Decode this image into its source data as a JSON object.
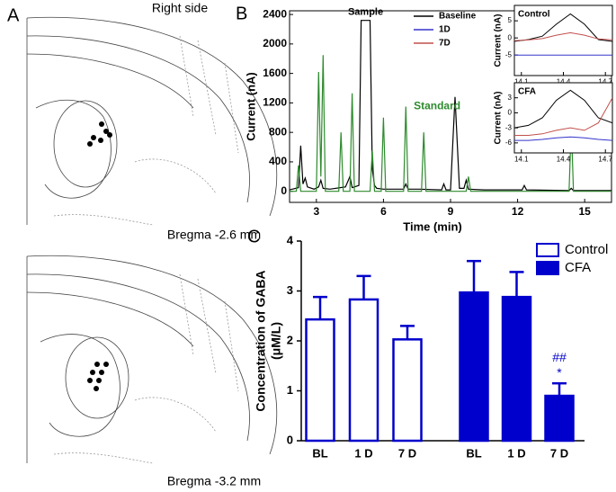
{
  "panel_a": {
    "letter": "A",
    "side_label": "Right side",
    "top_label": "Bregma -2.6 mm",
    "bottom_label": "Bregma -3.2 mm"
  },
  "chart_data": [
    {
      "type": "line",
      "panel": "B",
      "xlabel": "Time (min)",
      "ylabel": "Current (nA)",
      "xlim": [
        1.8,
        16.2
      ],
      "xticks": [
        3,
        6,
        9,
        12,
        15
      ],
      "ylim": [
        -150,
        2450
      ],
      "yticks": [
        0,
        400,
        800,
        1200,
        1600,
        2000,
        2400
      ],
      "series": [
        {
          "name": "Sample",
          "color": "#000000",
          "x": [
            1.8,
            2.2,
            2.3,
            2.4,
            2.5,
            2.6,
            2.9,
            3.1,
            3.2,
            3.3,
            3.6,
            4.3,
            4.5,
            4.6,
            4.9,
            5.0,
            5.4,
            5.5,
            5.6,
            5.7,
            6.0,
            6.9,
            7.0,
            7.1,
            7.6,
            8.6,
            8.7,
            8.8,
            9.0,
            9.2,
            9.4,
            9.6,
            9.7,
            9.8,
            10.5,
            12.2,
            12.3,
            12.4,
            14.3,
            14.4,
            14.5,
            16.2
          ],
          "values": [
            20,
            50,
            620,
            100,
            180,
            60,
            30,
            60,
            150,
            40,
            30,
            60,
            200,
            50,
            80,
            2320,
            2320,
            300,
            80,
            40,
            30,
            30,
            100,
            30,
            30,
            20,
            100,
            20,
            20,
            1280,
            40,
            40,
            150,
            30,
            20,
            20,
            80,
            20,
            10,
            40,
            10,
            10
          ]
        },
        {
          "name": "Standard",
          "color": "#2e8b2e",
          "x": [
            1.8,
            2.1,
            2.2,
            2.3,
            3.0,
            3.1,
            3.2,
            3.3,
            3.4,
            4.0,
            4.1,
            4.2,
            4.5,
            4.6,
            4.7,
            5.4,
            5.5,
            5.6,
            5.9,
            6.0,
            6.1,
            6.9,
            7.0,
            7.1,
            7.7,
            7.8,
            7.9,
            9.7,
            9.8,
            9.9,
            14.3,
            14.4,
            14.5,
            16.2
          ],
          "values": [
            0,
            0,
            350,
            0,
            0,
            1620,
            200,
            1850,
            0,
            0,
            800,
            0,
            0,
            1330,
            0,
            0,
            550,
            0,
            0,
            1000,
            0,
            0,
            1150,
            0,
            0,
            800,
            0,
            0,
            200,
            0,
            0,
            900,
            0,
            0
          ]
        }
      ],
      "legend": [
        {
          "name": "Baseline",
          "color": "#000000"
        },
        {
          "name": "1D",
          "color": "#3333cc"
        },
        {
          "name": "7D",
          "color": "#c0504d"
        }
      ]
    },
    {
      "type": "line",
      "title": "Control",
      "ylabel": "Current (nA)",
      "xlim": [
        14.05,
        14.75
      ],
      "xticks": [
        14.1,
        14.4,
        14.7
      ],
      "ylim": [
        -11,
        9.5
      ],
      "yticks": [
        -5,
        0,
        5
      ],
      "series": [
        {
          "name": "Baseline",
          "color": "#000000",
          "x": [
            14.05,
            14.15,
            14.25,
            14.35,
            14.45,
            14.55,
            14.65,
            14.75
          ],
          "values": [
            -1,
            -0.5,
            0.5,
            4,
            7,
            4,
            -0.5,
            -1
          ]
        },
        {
          "name": "1D",
          "color": "#3333cc",
          "x": [
            14.05,
            14.15,
            14.25,
            14.35,
            14.45,
            14.55,
            14.65,
            14.75
          ],
          "values": [
            -5,
            -5,
            -5,
            -5,
            -5,
            -5,
            -5,
            -5
          ]
        },
        {
          "name": "7D",
          "color": "#c0504d",
          "x": [
            14.05,
            14.15,
            14.25,
            14.35,
            14.45,
            14.55,
            14.65,
            14.75
          ],
          "values": [
            -0.8,
            -0.6,
            -0.2,
            0.8,
            1.5,
            0.8,
            -0.3,
            -0.6
          ]
        }
      ]
    },
    {
      "type": "line",
      "title": "CFA",
      "ylabel": "Current (nA)",
      "xlim": [
        14.05,
        14.75
      ],
      "xticks": [
        14.1,
        14.4,
        14.7
      ],
      "ylim": [
        -8,
        6
      ],
      "yticks": [
        -6,
        -3,
        0,
        3
      ],
      "series": [
        {
          "name": "Baseline",
          "color": "#000000",
          "x": [
            14.05,
            14.15,
            14.25,
            14.35,
            14.45,
            14.55,
            14.65,
            14.75
          ],
          "values": [
            -3,
            -2.5,
            -1,
            2.5,
            4.5,
            2.5,
            -1,
            -2
          ]
        },
        {
          "name": "1D",
          "color": "#3333cc",
          "x": [
            14.05,
            14.15,
            14.25,
            14.35,
            14.45,
            14.55,
            14.65,
            14.75
          ],
          "values": [
            -5.5,
            -5.5,
            -5.3,
            -5,
            -4.8,
            -5,
            -5.3,
            -5.5
          ]
        },
        {
          "name": "7D",
          "color": "#c0504d",
          "x": [
            14.05,
            14.15,
            14.25,
            14.35,
            14.45,
            14.55,
            14.65,
            14.75
          ],
          "values": [
            -4.5,
            -4.5,
            -4.2,
            -3.5,
            -3,
            -3.5,
            -2,
            3
          ]
        }
      ]
    },
    {
      "type": "bar",
      "panel": "C",
      "ylabel": [
        "Concentration of GABA",
        "(μM/L)"
      ],
      "categories": [
        "BL",
        "1 D",
        "7 D",
        "BL",
        "1 D",
        "7 D"
      ],
      "ylim": [
        0,
        4
      ],
      "yticks": [
        0,
        1,
        2,
        3,
        4
      ],
      "series": [
        {
          "name": "Control",
          "color": "#0000cc",
          "filled": false,
          "values": [
            2.43,
            2.83,
            2.03,
            null,
            null,
            null
          ],
          "errors": [
            0.45,
            0.47,
            0.27,
            null,
            null,
            null
          ]
        },
        {
          "name": "CFA",
          "color": "#0000cc",
          "filled": true,
          "values": [
            null,
            null,
            null,
            2.97,
            2.88,
            0.9
          ],
          "errors": [
            null,
            null,
            null,
            0.63,
            0.5,
            0.25
          ]
        }
      ],
      "annotations": [
        "##",
        "*"
      ]
    }
  ]
}
